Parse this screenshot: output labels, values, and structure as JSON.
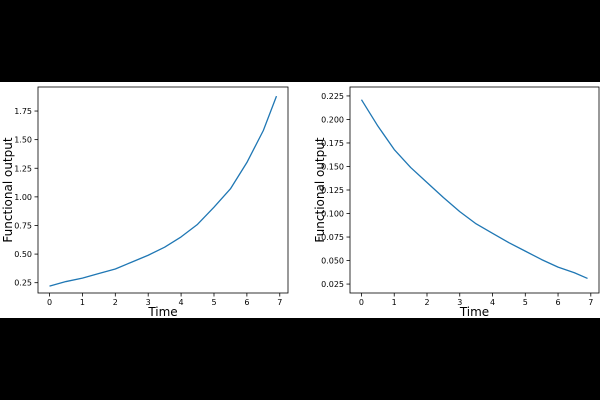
{
  "chart_data": [
    {
      "type": "line",
      "xlabel": "Time",
      "ylabel": "Functional output",
      "xlim": [
        -0.35,
        7.25
      ],
      "ylim": [
        0.16,
        1.96
      ],
      "xticks": [
        0,
        1,
        2,
        3,
        4,
        5,
        6,
        7
      ],
      "xtick_labels": [
        "0",
        "1",
        "2",
        "3",
        "4",
        "5",
        "6",
        "7"
      ],
      "yticks": [
        0.25,
        0.5,
        0.75,
        1.0,
        1.25,
        1.5,
        1.75
      ],
      "ytick_labels": [
        "0.25",
        "0.50",
        "0.75",
        "1.00",
        "1.25",
        "1.50",
        "1.75"
      ],
      "line_color": "#1f77b4",
      "series": [
        {
          "x": [
            0,
            0.5,
            1,
            1.5,
            2,
            2.5,
            3,
            3.5,
            4,
            4.5,
            5,
            5.5,
            6,
            6.5,
            6.9
          ],
          "values": [
            0.22,
            0.26,
            0.29,
            0.33,
            0.37,
            0.43,
            0.49,
            0.56,
            0.65,
            0.76,
            0.91,
            1.07,
            1.3,
            1.58,
            1.88
          ]
        }
      ]
    },
    {
      "type": "line",
      "xlabel": "Time",
      "ylabel": "Functional output",
      "xlim": [
        -0.35,
        7.25
      ],
      "ylim": [
        0.0155,
        0.2345
      ],
      "xticks": [
        0,
        1,
        2,
        3,
        4,
        5,
        6,
        7
      ],
      "xtick_labels": [
        "0",
        "1",
        "2",
        "3",
        "4",
        "5",
        "6",
        "7"
      ],
      "yticks": [
        0.025,
        0.05,
        0.075,
        0.1,
        0.125,
        0.15,
        0.175,
        0.2,
        0.225
      ],
      "ytick_labels": [
        "0.025",
        "0.050",
        "0.075",
        "0.100",
        "0.125",
        "0.150",
        "0.175",
        "0.200",
        "0.225"
      ],
      "line_color": "#1f77b4",
      "series": [
        {
          "x": [
            0,
            0.5,
            1,
            1.5,
            2,
            2.5,
            3,
            3.5,
            4,
            4.5,
            5,
            5.5,
            6,
            6.5,
            6.9
          ],
          "values": [
            0.221,
            0.193,
            0.168,
            0.149,
            0.133,
            0.117,
            0.102,
            0.089,
            0.079,
            0.069,
            0.06,
            0.051,
            0.043,
            0.037,
            0.031
          ]
        }
      ]
    }
  ]
}
